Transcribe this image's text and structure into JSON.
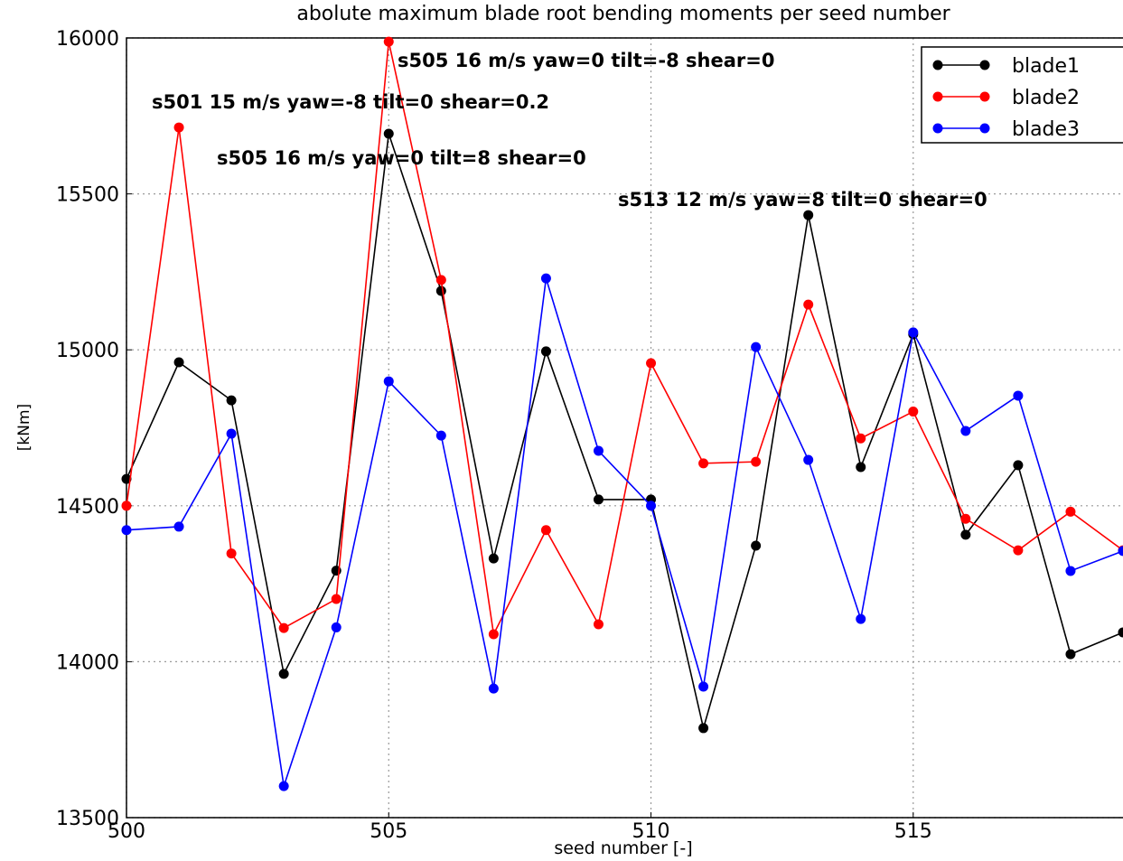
{
  "chart_data": {
    "type": "line",
    "title": "abolute maximum blade root bending moments per seed number",
    "xlabel": "seed number [-]",
    "ylabel": "[kNm]",
    "x": [
      500,
      501,
      502,
      503,
      504,
      505,
      506,
      507,
      508,
      509,
      510,
      511,
      512,
      513,
      514,
      515,
      516,
      517,
      518,
      519
    ],
    "series": [
      {
        "name": "blade1",
        "color": "#000000",
        "values": [
          14586,
          14960,
          14838,
          13961,
          14292,
          15693,
          15189,
          14331,
          14995,
          14520,
          14520,
          13787,
          14372,
          15432,
          14624,
          15050,
          14407,
          14630,
          14024,
          14094
        ]
      },
      {
        "name": "blade2",
        "color": "#ff0000",
        "values": [
          14500,
          15713,
          14347,
          14108,
          14201,
          15988,
          15224,
          14088,
          14422,
          14120,
          14957,
          14636,
          14641,
          15145,
          14716,
          14802,
          14458,
          14357,
          14481,
          14357
        ]
      },
      {
        "name": "blade3",
        "color": "#0000ff",
        "values": [
          14422,
          14433,
          14731,
          13601,
          14110,
          14899,
          14725,
          13914,
          15229,
          14676,
          14500,
          13920,
          15009,
          14647,
          14137,
          15056,
          14740,
          14853,
          14291,
          14355
        ]
      }
    ],
    "xlim": [
      500,
      519
    ],
    "ylim": [
      13500,
      16000
    ],
    "xticks": [
      500,
      505,
      510,
      515
    ],
    "yticks": [
      13500,
      14000,
      14500,
      15000,
      15500,
      16000
    ],
    "grid": true,
    "legend": "upper right",
    "annotations": [
      "s505 16 m/s yaw=0 tilt=-8 shear=0",
      "s501 15 m/s yaw=-8 tilt=0 shear=0.2",
      "s505 16 m/s yaw=0 tilt=8 shear=0",
      "s513 12 m/s yaw=8 tilt=0 shear=0"
    ]
  }
}
